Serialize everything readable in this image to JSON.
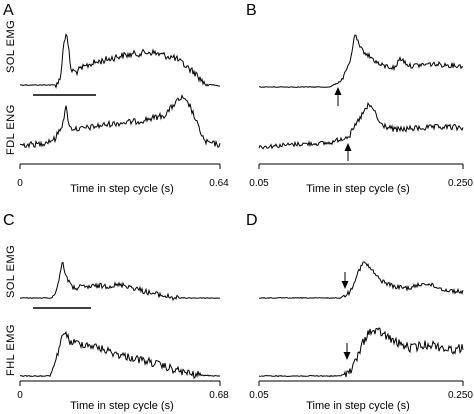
{
  "figure": {
    "panels": [
      {
        "letter": "A",
        "traces": [
          {
            "label": "SOL  EMG",
            "kind": "A_top"
          },
          {
            "label": "FDL  ENG",
            "kind": "A_bot"
          }
        ],
        "axis": {
          "title": "Time in step cycle (s)",
          "start_label": "0",
          "end_label": "0.64"
        }
      },
      {
        "letter": "B",
        "traces": [
          {
            "kind": "B_top"
          },
          {
            "kind": "B_bot"
          }
        ],
        "axis": {
          "title": "Time in step cycle (s)",
          "start_label": "0.05",
          "end_label": "0.250"
        }
      },
      {
        "letter": "C",
        "traces": [
          {
            "label": "SOL  EMG",
            "kind": "C_top"
          },
          {
            "label": "FHL  EMG",
            "kind": "C_bot"
          }
        ],
        "axis": {
          "title": "Time in step cycle (s)",
          "start_label": "0",
          "end_label": "0.68"
        }
      },
      {
        "letter": "D",
        "traces": [
          {
            "kind": "D_top"
          },
          {
            "kind": "D_bot"
          }
        ],
        "axis": {
          "title": "Time in step cycle (s)",
          "start_label": "0.05",
          "end_label": "0.250"
        }
      }
    ]
  }
}
